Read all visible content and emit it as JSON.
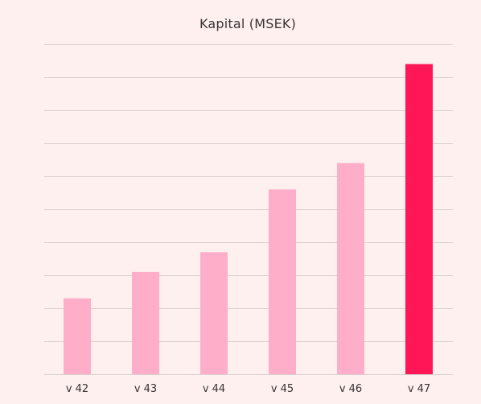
{
  "chart_data": {
    "type": "bar",
    "title": "Kapital (MSEK)",
    "xlabel": "",
    "ylabel": "",
    "categories": [
      "v 42",
      "v 43",
      "v 44",
      "v 45",
      "v 46",
      "v 47"
    ],
    "values": [
      23,
      31,
      37,
      56,
      64,
      94
    ],
    "ylim": [
      0,
      100
    ],
    "grid": true,
    "legend": "none",
    "highlight_index": 5,
    "colors": {
      "bar": "#ffaec9",
      "highlight": "#ff1657",
      "grid": "#d9d0d0",
      "background": "#fdf0ef"
    }
  }
}
